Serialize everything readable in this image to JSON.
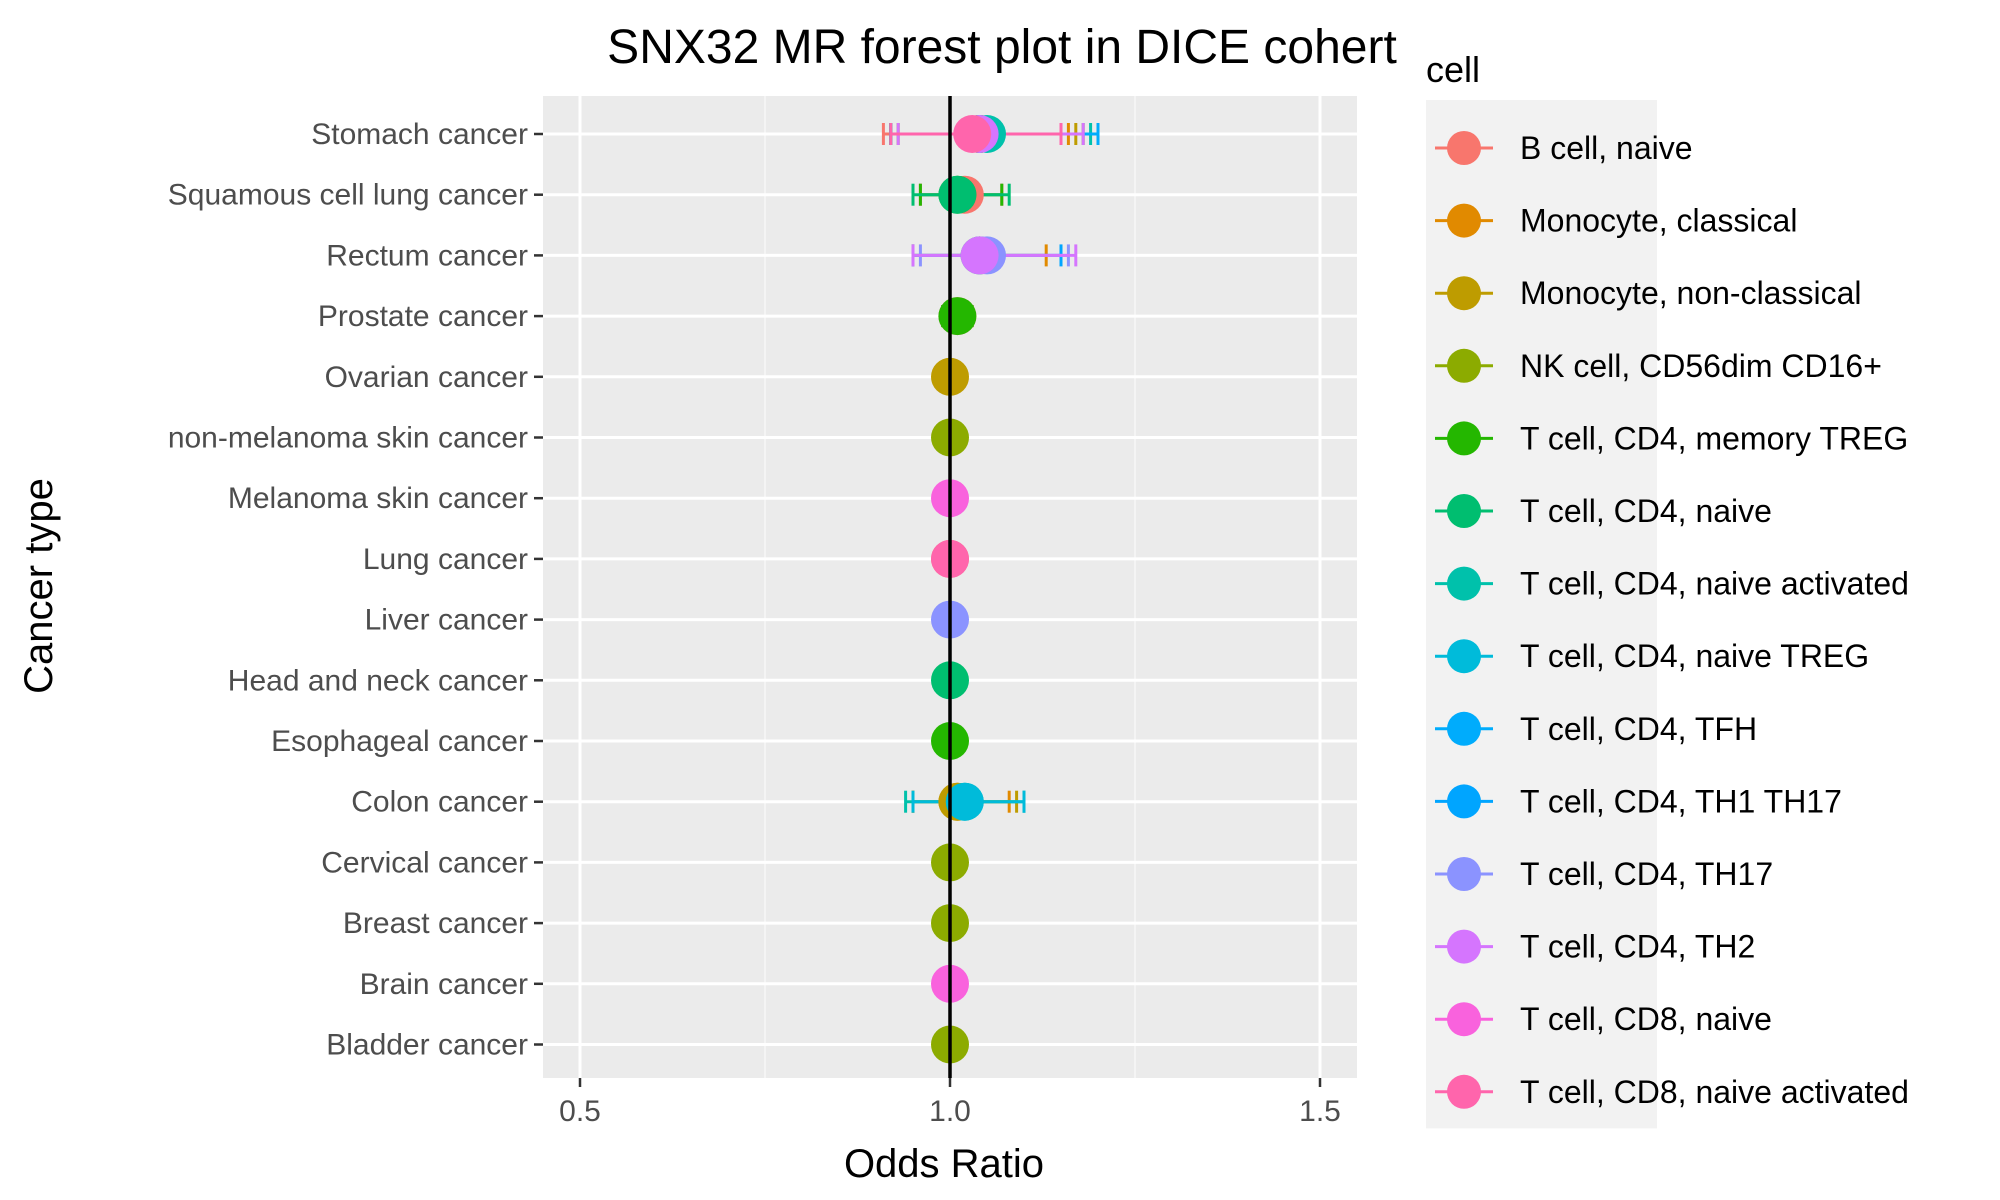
{
  "chart_data": {
    "type": "scatter",
    "title": "SNX32 MR forest plot in DICE cohert",
    "xlabel": "Odds Ratio",
    "ylabel": "Cancer type",
    "xlim": [
      0.45,
      1.55
    ],
    "x_ticks": [
      "0.5",
      "1.0",
      "1.5"
    ],
    "reference_line": 1.0,
    "grid": true,
    "legend_position": "right",
    "legend_title": "cell",
    "categories": [
      "Stomach cancer",
      "Squamous cell lung cancer",
      "Rectum cancer",
      "Prostate cancer",
      "Ovarian cancer",
      "non-melanoma skin cancer",
      "Melanoma skin cancer",
      "Lung cancer",
      "Liver cancer",
      "Head and neck cancer",
      "Esophageal cancer",
      "Colon cancer",
      "Cervical cancer",
      "Breast cancer",
      "Brain cancer",
      "Bladder cancer"
    ],
    "series": [
      {
        "name": "B cell, naive",
        "color": "#F8766D",
        "points": [
          {
            "y": "Stomach cancer",
            "or": 1.04,
            "lo": 0.91,
            "hi": 1.15
          },
          {
            "y": "Squamous cell lung cancer",
            "or": 1.02,
            "lo": 0.96,
            "hi": 1.07
          },
          {
            "y": "Prostate cancer",
            "or": 1.01,
            "lo": 0.99,
            "hi": 1.03
          },
          {
            "y": "Lung cancer",
            "or": 1.0,
            "lo": 1.0,
            "hi": 1.0
          }
        ]
      },
      {
        "name": "Monocyte, classical",
        "color": "#E18A00",
        "points": [
          {
            "y": "Stomach cancer",
            "or": 1.04,
            "lo": 0.92,
            "hi": 1.16
          },
          {
            "y": "Rectum cancer",
            "or": 1.04,
            "lo": 0.95,
            "hi": 1.13
          },
          {
            "y": "Colon cancer",
            "or": 1.01,
            "lo": 0.95,
            "hi": 1.08
          }
        ]
      },
      {
        "name": "Monocyte, non-classical",
        "color": "#BE9C00",
        "points": [
          {
            "y": "Stomach cancer",
            "or": 1.04,
            "lo": 0.92,
            "hi": 1.17
          },
          {
            "y": "Ovarian cancer",
            "or": 1.0,
            "lo": 1.0,
            "hi": 1.0
          },
          {
            "y": "Colon cancer",
            "or": 1.01,
            "lo": 0.95,
            "hi": 1.09
          }
        ]
      },
      {
        "name": "NK cell, CD56dim CD16+",
        "color": "#8CAB00",
        "points": [
          {
            "y": "Stomach cancer",
            "or": 1.04,
            "lo": 0.93,
            "hi": 1.18
          },
          {
            "y": "non-melanoma skin cancer",
            "or": 1.0,
            "lo": 1.0,
            "hi": 1.0
          },
          {
            "y": "Cervical cancer",
            "or": 1.0,
            "lo": 1.0,
            "hi": 1.0
          },
          {
            "y": "Breast cancer",
            "or": 1.0,
            "lo": 1.0,
            "hi": 1.0
          },
          {
            "y": "Bladder cancer",
            "or": 1.0,
            "lo": 1.0,
            "hi": 1.0
          }
        ]
      },
      {
        "name": "T cell, CD4, memory TREG",
        "color": "#24B700",
        "points": [
          {
            "y": "Squamous cell lung cancer",
            "or": 1.01,
            "lo": 0.96,
            "hi": 1.07
          },
          {
            "y": "Prostate cancer",
            "or": 1.01,
            "lo": 0.99,
            "hi": 1.03
          },
          {
            "y": "Esophageal cancer",
            "or": 1.0,
            "lo": 1.0,
            "hi": 1.0
          }
        ]
      },
      {
        "name": "T cell, CD4, naive",
        "color": "#00BE70",
        "points": [
          {
            "y": "Squamous cell lung cancer",
            "or": 1.01,
            "lo": 0.95,
            "hi": 1.08
          },
          {
            "y": "Head and neck cancer",
            "or": 1.0,
            "lo": 1.0,
            "hi": 1.0
          }
        ]
      },
      {
        "name": "T cell, CD4, naive activated",
        "color": "#00C1AB",
        "points": [
          {
            "y": "Stomach cancer",
            "or": 1.05,
            "lo": 0.92,
            "hi": 1.19
          },
          {
            "y": "Colon cancer",
            "or": 1.02,
            "lo": 0.94,
            "hi": 1.1
          }
        ]
      },
      {
        "name": "T cell, CD4, naive TREG",
        "color": "#00BBDA",
        "points": [
          {
            "y": "Colon cancer",
            "or": 1.02,
            "lo": 0.95,
            "hi": 1.1
          }
        ]
      },
      {
        "name": "T cell, CD4, TFH",
        "color": "#00ACFC",
        "points": [
          {
            "y": "Stomach cancer",
            "or": 1.04,
            "lo": 0.92,
            "hi": 1.2
          }
        ]
      },
      {
        "name": "T cell, CD4, TH1 TH17",
        "color": "#00A5FF",
        "points": [
          {
            "y": "Rectum cancer",
            "or": 1.04,
            "lo": 0.95,
            "hi": 1.15
          }
        ]
      },
      {
        "name": "T cell, CD4, TH17",
        "color": "#8B93FF",
        "points": [
          {
            "y": "Rectum cancer",
            "or": 1.05,
            "lo": 0.96,
            "hi": 1.16
          },
          {
            "y": "Liver cancer",
            "or": 1.0,
            "lo": 1.0,
            "hi": 1.0
          }
        ]
      },
      {
        "name": "T cell, CD4, TH2",
        "color": "#D575FE",
        "points": [
          {
            "y": "Stomach cancer",
            "or": 1.04,
            "lo": 0.93,
            "hi": 1.18
          },
          {
            "y": "Rectum cancer",
            "or": 1.04,
            "lo": 0.95,
            "hi": 1.17
          }
        ]
      },
      {
        "name": "T cell, CD8, naive",
        "color": "#F962DD",
        "points": [
          {
            "y": "Melanoma skin cancer",
            "or": 1.0,
            "lo": 1.0,
            "hi": 1.0
          },
          {
            "y": "Brain cancer",
            "or": 1.0,
            "lo": 1.0,
            "hi": 1.0
          }
        ]
      },
      {
        "name": "T cell, CD8, naive activated",
        "color": "#FF65AC",
        "points": [
          {
            "y": "Lung cancer",
            "or": 1.0,
            "lo": 1.0,
            "hi": 1.0
          },
          {
            "y": "Stomach cancer",
            "or": 1.03,
            "lo": 0.92,
            "hi": 1.15
          }
        ]
      }
    ]
  }
}
